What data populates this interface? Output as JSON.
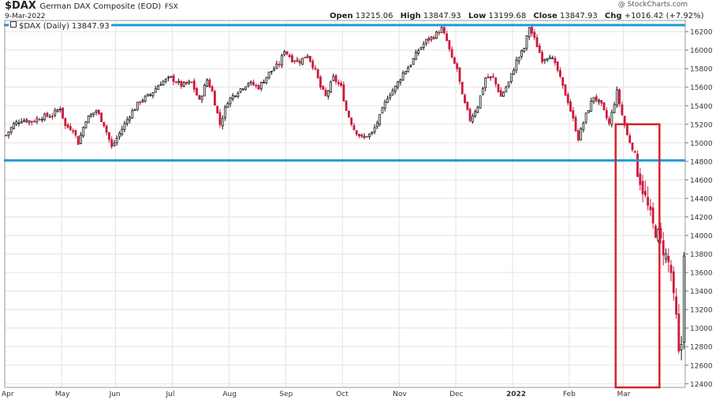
{
  "header": {
    "symbol": "$DAX",
    "name": "German DAX Composite (EOD)",
    "exchange": "FSX",
    "date": "9-Mar-2022",
    "copyright": "@ StockCharts.com",
    "open_label": "Open",
    "open": "13215.06",
    "high_label": "High",
    "high": "13847.93",
    "low_label": "Low",
    "low": "13199.68",
    "close_label": "Close",
    "close": "13847.93",
    "chg_label": "Chg",
    "chg": "+1016.42 (+7.92%)",
    "legend": "$DAX (Daily) 13847.93"
  },
  "colors": {
    "up": "#111111",
    "down": "#cc1a3c",
    "hline": "#1e9ad6",
    "box": "#d8222a",
    "grid": "#e3e3e3"
  },
  "chart_data": {
    "type": "candlestick",
    "ylim": [
      12360,
      16320
    ],
    "y_ticks": [
      12400,
      12600,
      12800,
      13000,
      13200,
      13400,
      13600,
      13800,
      14000,
      14200,
      14400,
      14600,
      14800,
      15000,
      15200,
      15400,
      15600,
      15800,
      16000,
      16200
    ],
    "x_ticks": [
      {
        "label": "Apr",
        "bold": false
      },
      {
        "label": "May",
        "bold": false
      },
      {
        "label": "Jun",
        "bold": false
      },
      {
        "label": "Jul",
        "bold": false
      },
      {
        "label": "Aug",
        "bold": false
      },
      {
        "label": "Sep",
        "bold": false
      },
      {
        "label": "Oct",
        "bold": false
      },
      {
        "label": "Nov",
        "bold": false
      },
      {
        "label": "Dec",
        "bold": false
      },
      {
        "label": "2022",
        "bold": true
      },
      {
        "label": "Feb",
        "bold": false
      },
      {
        "label": "Mar",
        "bold": false
      }
    ],
    "horizontal_lines": [
      16270,
      14810
    ],
    "highlight_box": {
      "date_range": [
        "Feb",
        "Mar"
      ],
      "price_range": [
        12360,
        15200
      ]
    },
    "close_path": [
      [
        0,
        15080
      ],
      [
        3,
        15200
      ],
      [
        6,
        15250
      ],
      [
        10,
        15230
      ],
      [
        14,
        15280
      ],
      [
        18,
        15300
      ],
      [
        21,
        15380
      ],
      [
        23,
        15180
      ],
      [
        26,
        15150
      ],
      [
        28,
        15000
      ],
      [
        31,
        15250
      ],
      [
        35,
        15350
      ],
      [
        38,
        15200
      ],
      [
        41,
        14950
      ],
      [
        44,
        15100
      ],
      [
        48,
        15300
      ],
      [
        52,
        15450
      ],
      [
        56,
        15520
      ],
      [
        60,
        15650
      ],
      [
        64,
        15700
      ],
      [
        68,
        15620
      ],
      [
        72,
        15650
      ],
      [
        75,
        15450
      ],
      [
        78,
        15680
      ],
      [
        80,
        15550
      ],
      [
        83,
        15200
      ],
      [
        86,
        15450
      ],
      [
        90,
        15560
      ],
      [
        94,
        15650
      ],
      [
        98,
        15600
      ],
      [
        102,
        15750
      ],
      [
        106,
        15850
      ],
      [
        108,
        16000
      ],
      [
        111,
        15900
      ],
      [
        114,
        15880
      ],
      [
        117,
        15950
      ],
      [
        120,
        15780
      ],
      [
        122,
        15600
      ],
      [
        124,
        15500
      ],
      [
        127,
        15700
      ],
      [
        130,
        15600
      ],
      [
        132,
        15350
      ],
      [
        135,
        15150
      ],
      [
        138,
        15050
      ],
      [
        142,
        15100
      ],
      [
        145,
        15280
      ],
      [
        148,
        15500
      ],
      [
        151,
        15600
      ],
      [
        154,
        15750
      ],
      [
        157,
        15850
      ],
      [
        160,
        16000
      ],
      [
        163,
        16100
      ],
      [
        166,
        16150
      ],
      [
        169,
        16230
      ],
      [
        171,
        16100
      ],
      [
        173,
        15900
      ],
      [
        175,
        15800
      ],
      [
        177,
        15500
      ],
      [
        180,
        15250
      ],
      [
        183,
        15400
      ],
      [
        186,
        15700
      ],
      [
        189,
        15700
      ],
      [
        192,
        15500
      ],
      [
        195,
        15650
      ],
      [
        198,
        15880
      ],
      [
        201,
        16020
      ],
      [
        203,
        16250
      ],
      [
        206,
        16050
      ],
      [
        208,
        15900
      ],
      [
        211,
        15950
      ],
      [
        214,
        15780
      ],
      [
        216,
        15600
      ],
      [
        218,
        15450
      ],
      [
        220,
        15250
      ],
      [
        222,
        15050
      ],
      [
        225,
        15300
      ],
      [
        228,
        15500
      ],
      [
        231,
        15400
      ],
      [
        234,
        15200
      ],
      [
        237,
        15550
      ],
      [
        239,
        15300
      ],
      [
        241,
        15080
      ],
      [
        243,
        14950
      ],
      [
        245,
        14700
      ],
      [
        247,
        14500
      ],
      [
        249,
        14300
      ],
      [
        251,
        14100
      ],
      [
        253,
        14000
      ],
      [
        255,
        13850
      ],
      [
        257,
        13700
      ],
      [
        258,
        13600
      ],
      [
        259,
        13300
      ],
      [
        260,
        13100
      ],
      [
        261,
        12700
      ],
      [
        262,
        12830
      ],
      [
        263,
        13850
      ]
    ]
  }
}
